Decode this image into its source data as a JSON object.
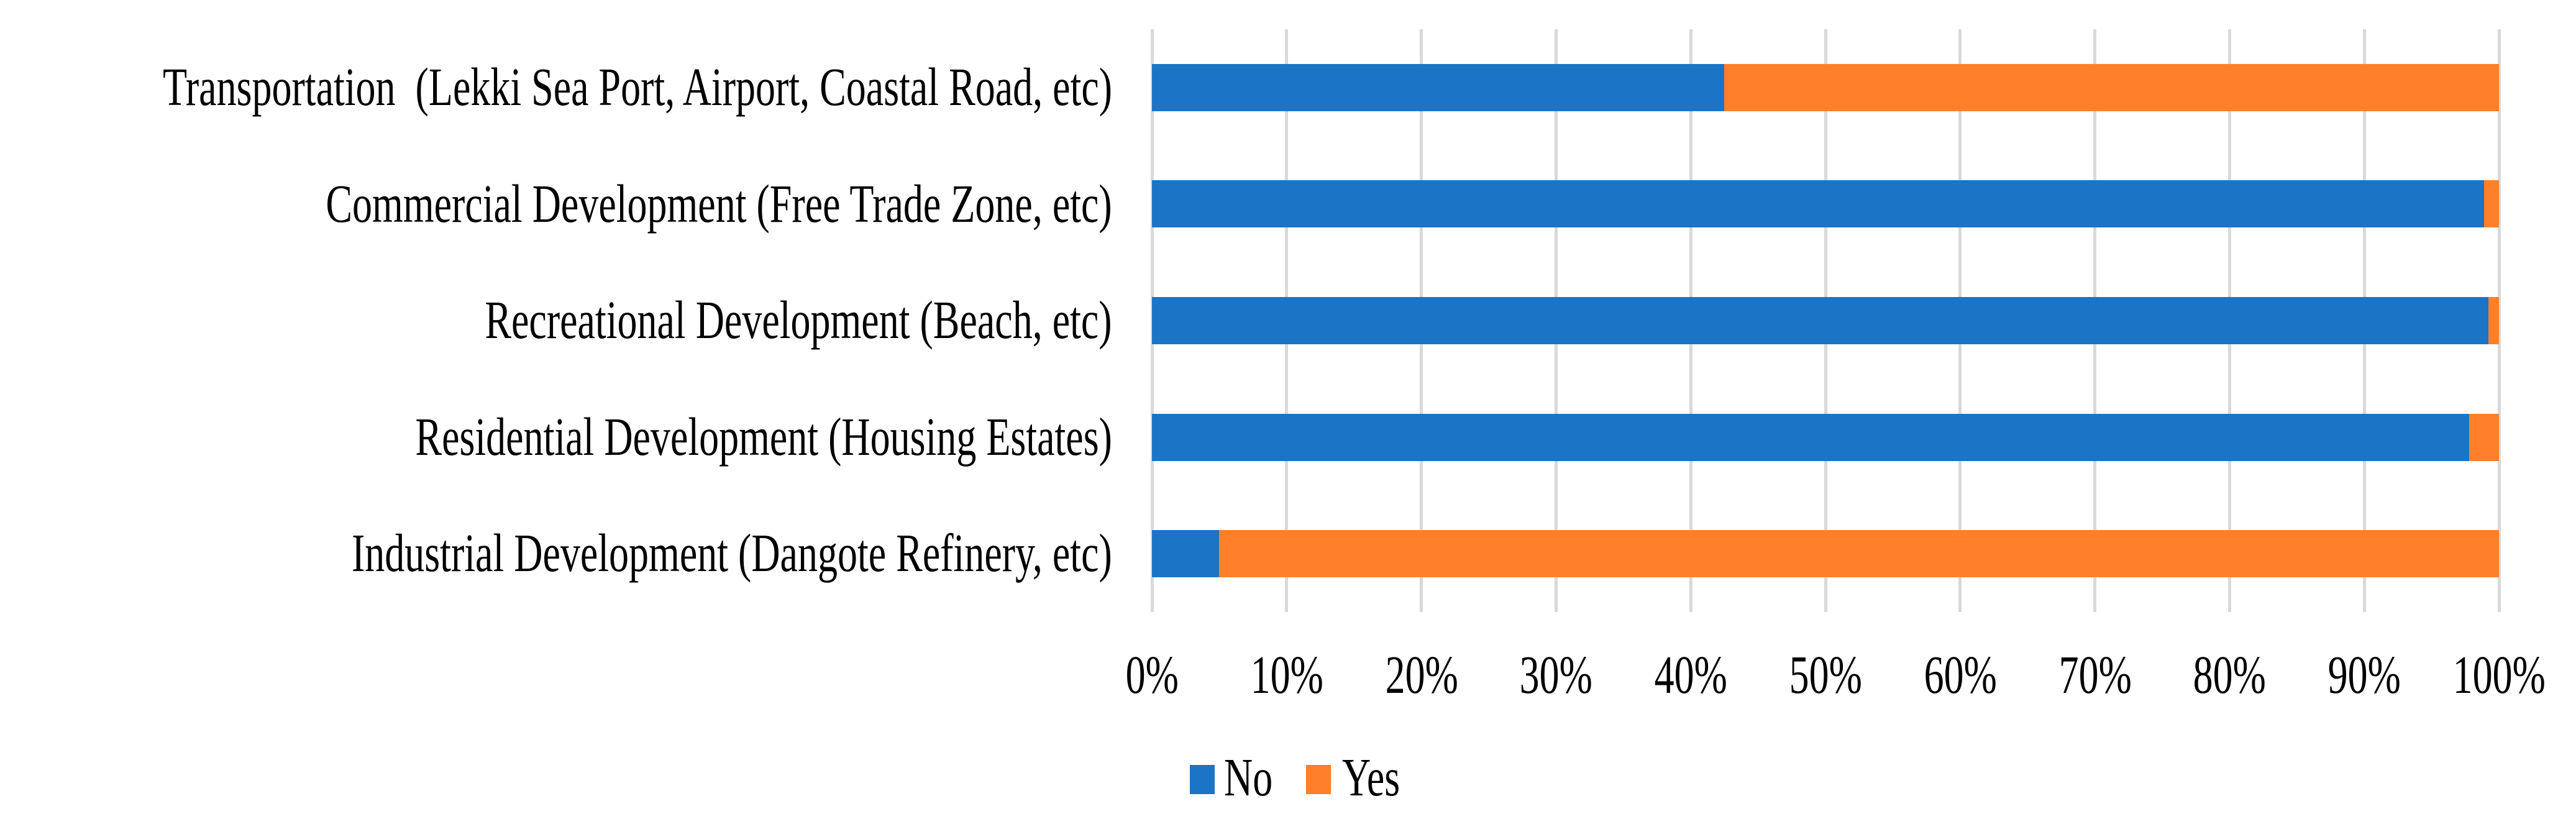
{
  "chart_data": {
    "type": "bar",
    "orientation": "horizontal",
    "stacked": true,
    "stacked_total": 100,
    "categories": [
      "Transportation  (Lekki Sea Port, Airport, Coastal Road, etc)",
      "Commercial Development (Free Trade Zone, etc)",
      "Recreational Development (Beach, etc)",
      "Residential Development (Housing Estates)",
      "Industrial Development (Dangote Refinery, etc)"
    ],
    "series": [
      {
        "name": "No",
        "color": "#1B74C5",
        "values": [
          42.5,
          98.9,
          99.2,
          97.8,
          5.0
        ]
      },
      {
        "name": "Yes",
        "color": "#FF7F2B",
        "values": [
          57.5,
          1.1,
          0.8,
          2.2,
          95.0
        ]
      }
    ],
    "x_axis": {
      "min": 0,
      "max": 100,
      "unit": "%",
      "ticks": [
        "0%",
        "10%",
        "20%",
        "30%",
        "40%",
        "50%",
        "60%",
        "70%",
        "80%",
        "90%",
        "100%"
      ]
    },
    "grid": {
      "vertical": true,
      "color": "#D9D9D9"
    },
    "legend": {
      "position": "bottom"
    },
    "background": "#FFFFFF"
  }
}
